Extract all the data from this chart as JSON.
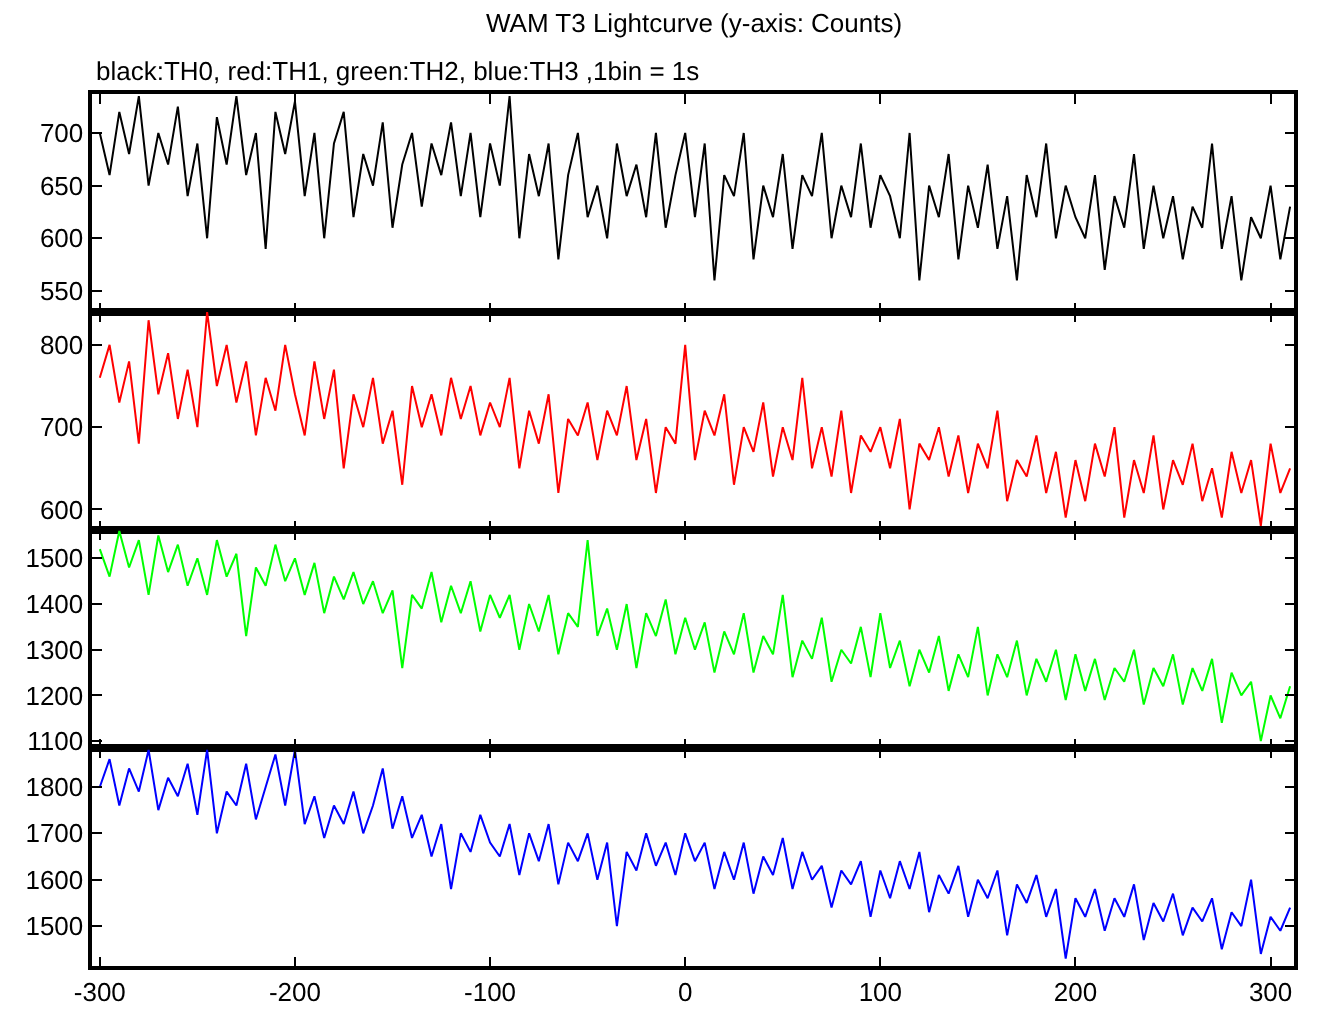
{
  "chart_data": [
    {
      "type": "line",
      "title": "WAM T3 Lightcurve (y-axis: Counts)",
      "subtitle": "black:TH0, red:TH1, green:TH2, blue:TH3 ,1bin = 1s",
      "tick_labels": "y",
      "xlim": [
        -304,
        312
      ],
      "xticks": [
        -300,
        -200,
        -100,
        0,
        100,
        200,
        300
      ],
      "ylim": [
        530,
        737
      ],
      "yticks": [
        550,
        600,
        650,
        700
      ],
      "x": [
        -300,
        -295,
        -290,
        -285,
        -280,
        -275,
        -270,
        -265,
        -260,
        -255,
        -250,
        -245,
        -240,
        -235,
        -230,
        -225,
        -220,
        -215,
        -210,
        -205,
        -200,
        -195,
        -190,
        -185,
        -180,
        -175,
        -170,
        -165,
        -160,
        -155,
        -150,
        -145,
        -140,
        -135,
        -130,
        -125,
        -120,
        -115,
        -110,
        -105,
        -100,
        -95,
        -90,
        -85,
        -80,
        -75,
        -70,
        -65,
        -60,
        -55,
        -50,
        -45,
        -40,
        -35,
        -30,
        -25,
        -20,
        -15,
        -10,
        -5,
        0,
        5,
        10,
        15,
        20,
        25,
        30,
        35,
        40,
        45,
        50,
        55,
        60,
        65,
        70,
        75,
        80,
        85,
        90,
        95,
        100,
        105,
        110,
        115,
        120,
        125,
        130,
        135,
        140,
        145,
        150,
        155,
        160,
        165,
        170,
        175,
        180,
        185,
        190,
        195,
        200,
        205,
        210,
        215,
        220,
        225,
        230,
        235,
        240,
        245,
        250,
        255,
        260,
        265,
        270,
        275,
        280,
        285,
        290,
        295,
        300,
        305,
        310
      ],
      "series": [
        {
          "color": "#000000",
          "values": [
            700,
            660,
            720,
            680,
            735,
            650,
            700,
            670,
            725,
            640,
            690,
            600,
            715,
            670,
            735,
            660,
            700,
            590,
            720,
            680,
            730,
            640,
            700,
            600,
            690,
            720,
            620,
            680,
            650,
            710,
            610,
            670,
            700,
            630,
            690,
            660,
            710,
            640,
            700,
            620,
            690,
            650,
            735,
            600,
            680,
            640,
            690,
            580,
            660,
            700,
            620,
            650,
            600,
            690,
            640,
            670,
            620,
            700,
            610,
            660,
            700,
            620,
            690,
            560,
            660,
            640,
            700,
            580,
            650,
            620,
            680,
            590,
            660,
            640,
            700,
            600,
            650,
            620,
            690,
            610,
            660,
            640,
            600,
            700,
            560,
            650,
            620,
            680,
            580,
            650,
            610,
            670,
            590,
            640,
            560,
            660,
            620,
            690,
            600,
            650,
            620,
            600,
            660,
            570,
            640,
            610,
            680,
            590,
            650,
            600,
            640,
            580,
            630,
            610,
            690,
            590,
            640,
            560,
            620,
            600,
            650,
            580,
            630
          ]
        }
      ]
    },
    {
      "type": "line",
      "tick_labels": "y",
      "xlim": [
        -304,
        312
      ],
      "xticks": [
        -300,
        -200,
        -100,
        0,
        100,
        200,
        300
      ],
      "ylim": [
        575,
        840
      ],
      "yticks": [
        600,
        700,
        800
      ],
      "x": [
        -300,
        -295,
        -290,
        -285,
        -280,
        -275,
        -270,
        -265,
        -260,
        -255,
        -250,
        -245,
        -240,
        -235,
        -230,
        -225,
        -220,
        -215,
        -210,
        -205,
        -200,
        -195,
        -190,
        -185,
        -180,
        -175,
        -170,
        -165,
        -160,
        -155,
        -150,
        -145,
        -140,
        -135,
        -130,
        -125,
        -120,
        -115,
        -110,
        -105,
        -100,
        -95,
        -90,
        -85,
        -80,
        -75,
        -70,
        -65,
        -60,
        -55,
        -50,
        -45,
        -40,
        -35,
        -30,
        -25,
        -20,
        -15,
        -10,
        -5,
        0,
        5,
        10,
        15,
        20,
        25,
        30,
        35,
        40,
        45,
        50,
        55,
        60,
        65,
        70,
        75,
        80,
        85,
        90,
        95,
        100,
        105,
        110,
        115,
        120,
        125,
        130,
        135,
        140,
        145,
        150,
        155,
        160,
        165,
        170,
        175,
        180,
        185,
        190,
        195,
        200,
        205,
        210,
        215,
        220,
        225,
        230,
        235,
        240,
        245,
        250,
        255,
        260,
        265,
        270,
        275,
        280,
        285,
        290,
        295,
        300,
        305,
        310
      ],
      "series": [
        {
          "color": "#ff0000",
          "values": [
            760,
            800,
            730,
            780,
            680,
            830,
            740,
            790,
            710,
            770,
            700,
            840,
            750,
            800,
            730,
            780,
            690,
            760,
            720,
            800,
            740,
            690,
            780,
            710,
            770,
            650,
            740,
            700,
            760,
            680,
            720,
            630,
            750,
            700,
            740,
            690,
            760,
            710,
            750,
            690,
            730,
            700,
            760,
            650,
            720,
            680,
            740,
            620,
            710,
            690,
            730,
            660,
            720,
            690,
            750,
            660,
            710,
            620,
            700,
            680,
            800,
            660,
            720,
            690,
            740,
            630,
            700,
            670,
            730,
            640,
            700,
            660,
            760,
            650,
            700,
            640,
            720,
            620,
            690,
            670,
            700,
            650,
            710,
            600,
            680,
            660,
            700,
            640,
            690,
            620,
            680,
            650,
            720,
            610,
            660,
            640,
            690,
            620,
            670,
            590,
            660,
            610,
            680,
            640,
            700,
            590,
            660,
            620,
            690,
            600,
            660,
            630,
            680,
            610,
            650,
            590,
            670,
            620,
            660,
            580,
            680,
            620,
            650
          ]
        }
      ]
    },
    {
      "type": "line",
      "tick_labels": "y",
      "xlim": [
        -304,
        312
      ],
      "xticks": [
        -300,
        -200,
        -100,
        0,
        100,
        200,
        300
      ],
      "ylim": [
        1085,
        1562
      ],
      "yticks": [
        1100,
        1200,
        1300,
        1400,
        1500
      ],
      "x": [
        -300,
        -295,
        -290,
        -285,
        -280,
        -275,
        -270,
        -265,
        -260,
        -255,
        -250,
        -245,
        -240,
        -235,
        -230,
        -225,
        -220,
        -215,
        -210,
        -205,
        -200,
        -195,
        -190,
        -185,
        -180,
        -175,
        -170,
        -165,
        -160,
        -155,
        -150,
        -145,
        -140,
        -135,
        -130,
        -125,
        -120,
        -115,
        -110,
        -105,
        -100,
        -95,
        -90,
        -85,
        -80,
        -75,
        -70,
        -65,
        -60,
        -55,
        -50,
        -45,
        -40,
        -35,
        -30,
        -25,
        -20,
        -15,
        -10,
        -5,
        0,
        5,
        10,
        15,
        20,
        25,
        30,
        35,
        40,
        45,
        50,
        55,
        60,
        65,
        70,
        75,
        80,
        85,
        90,
        95,
        100,
        105,
        110,
        115,
        120,
        125,
        130,
        135,
        140,
        145,
        150,
        155,
        160,
        165,
        170,
        175,
        180,
        185,
        190,
        195,
        200,
        205,
        210,
        215,
        220,
        225,
        230,
        235,
        240,
        245,
        250,
        255,
        260,
        265,
        270,
        275,
        280,
        285,
        290,
        295,
        300,
        305,
        310
      ],
      "series": [
        {
          "color": "#00ff00",
          "values": [
            1520,
            1460,
            1560,
            1480,
            1540,
            1420,
            1550,
            1470,
            1530,
            1440,
            1500,
            1420,
            1540,
            1460,
            1510,
            1330,
            1480,
            1440,
            1530,
            1450,
            1500,
            1420,
            1490,
            1380,
            1460,
            1410,
            1470,
            1400,
            1450,
            1380,
            1430,
            1260,
            1420,
            1390,
            1470,
            1360,
            1440,
            1380,
            1450,
            1340,
            1420,
            1370,
            1420,
            1300,
            1400,
            1340,
            1420,
            1290,
            1380,
            1350,
            1540,
            1330,
            1390,
            1300,
            1400,
            1260,
            1380,
            1330,
            1410,
            1290,
            1370,
            1300,
            1360,
            1250,
            1340,
            1290,
            1380,
            1250,
            1330,
            1290,
            1420,
            1240,
            1320,
            1280,
            1370,
            1230,
            1300,
            1270,
            1350,
            1240,
            1380,
            1260,
            1320,
            1220,
            1300,
            1250,
            1330,
            1210,
            1290,
            1240,
            1350,
            1200,
            1290,
            1240,
            1320,
            1200,
            1280,
            1230,
            1300,
            1190,
            1290,
            1210,
            1280,
            1190,
            1260,
            1230,
            1300,
            1180,
            1260,
            1220,
            1290,
            1180,
            1260,
            1210,
            1280,
            1140,
            1250,
            1200,
            1230,
            1100,
            1200,
            1150,
            1220
          ]
        }
      ]
    },
    {
      "type": "line",
      "xlim": [
        -304,
        312
      ],
      "xticks": [
        -300,
        -200,
        -100,
        0,
        100,
        200,
        300
      ],
      "ylim": [
        1414,
        1884
      ],
      "yticks": [
        1500,
        1600,
        1700,
        1800
      ],
      "x": [
        -300,
        -295,
        -290,
        -285,
        -280,
        -275,
        -270,
        -265,
        -260,
        -255,
        -250,
        -245,
        -240,
        -235,
        -230,
        -225,
        -220,
        -215,
        -210,
        -205,
        -200,
        -195,
        -190,
        -185,
        -180,
        -175,
        -170,
        -165,
        -160,
        -155,
        -150,
        -145,
        -140,
        -135,
        -130,
        -125,
        -120,
        -115,
        -110,
        -105,
        -100,
        -95,
        -90,
        -85,
        -80,
        -75,
        -70,
        -65,
        -60,
        -55,
        -50,
        -45,
        -40,
        -35,
        -30,
        -25,
        -20,
        -15,
        -10,
        -5,
        0,
        5,
        10,
        15,
        20,
        25,
        30,
        35,
        40,
        45,
        50,
        55,
        60,
        65,
        70,
        75,
        80,
        85,
        90,
        95,
        100,
        105,
        110,
        115,
        120,
        125,
        130,
        135,
        140,
        145,
        150,
        155,
        160,
        165,
        170,
        175,
        180,
        185,
        190,
        195,
        200,
        205,
        210,
        215,
        220,
        225,
        230,
        235,
        240,
        245,
        250,
        255,
        260,
        265,
        270,
        275,
        280,
        285,
        290,
        295,
        300,
        305,
        310
      ],
      "series": [
        {
          "color": "#0000ff",
          "values": [
            1800,
            1860,
            1760,
            1840,
            1790,
            1880,
            1750,
            1820,
            1780,
            1850,
            1740,
            1880,
            1700,
            1790,
            1760,
            1850,
            1730,
            1800,
            1870,
            1760,
            1880,
            1720,
            1780,
            1690,
            1760,
            1720,
            1790,
            1700,
            1760,
            1840,
            1710,
            1780,
            1690,
            1740,
            1650,
            1720,
            1580,
            1700,
            1660,
            1740,
            1680,
            1650,
            1720,
            1610,
            1700,
            1640,
            1720,
            1590,
            1680,
            1640,
            1700,
            1600,
            1680,
            1500,
            1660,
            1620,
            1700,
            1630,
            1680,
            1610,
            1700,
            1640,
            1680,
            1580,
            1660,
            1600,
            1680,
            1570,
            1650,
            1610,
            1690,
            1580,
            1660,
            1600,
            1630,
            1540,
            1620,
            1590,
            1640,
            1520,
            1620,
            1560,
            1640,
            1580,
            1660,
            1530,
            1610,
            1570,
            1630,
            1520,
            1600,
            1560,
            1620,
            1480,
            1590,
            1550,
            1610,
            1520,
            1580,
            1430,
            1560,
            1520,
            1580,
            1490,
            1560,
            1520,
            1590,
            1470,
            1550,
            1510,
            1570,
            1480,
            1540,
            1510,
            1560,
            1450,
            1530,
            1500,
            1600,
            1440,
            1520,
            1490,
            1540
          ]
        }
      ]
    }
  ]
}
